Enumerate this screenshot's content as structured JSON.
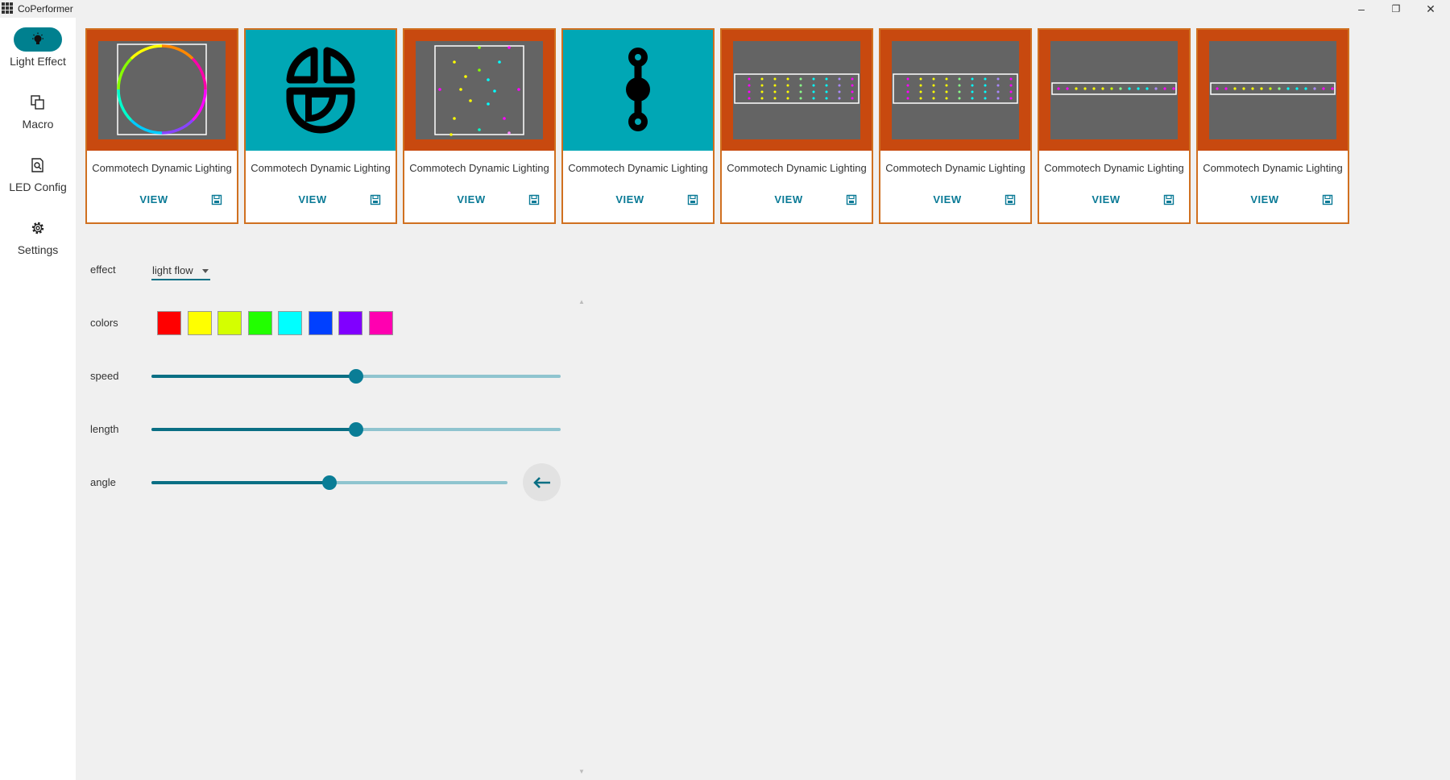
{
  "window": {
    "title": "CoPerformer",
    "controls": {
      "minimize": "–",
      "maximize": "❐",
      "close": "✕"
    }
  },
  "sidebar": {
    "items": [
      {
        "label": "Light Effect",
        "icon": "lightbulb-icon",
        "active": true
      },
      {
        "label": "Macro",
        "icon": "copy-icon",
        "active": false
      },
      {
        "label": "LED Config",
        "icon": "document-search-icon",
        "active": false
      },
      {
        "label": "Settings",
        "icon": "gear-icon",
        "active": false
      }
    ]
  },
  "cards": [
    {
      "title": "Commotech Dynamic Lighting",
      "view_label": "VIEW",
      "preview": "ring"
    },
    {
      "title": "Commotech Dynamic Lighting",
      "view_label": "VIEW",
      "preview": "logo"
    },
    {
      "title": "Commotech Dynamic Lighting",
      "view_label": "VIEW",
      "preview": "scatter"
    },
    {
      "title": "Commotech Dynamic Lighting",
      "view_label": "VIEW",
      "preview": "chain"
    },
    {
      "title": "Commotech Dynamic Lighting",
      "view_label": "VIEW",
      "preview": "grid"
    },
    {
      "title": "Commotech Dynamic Lighting",
      "view_label": "VIEW",
      "preview": "grid"
    },
    {
      "title": "Commotech Dynamic Lighting",
      "view_label": "VIEW",
      "preview": "strip"
    },
    {
      "title": "Commotech Dynamic Lighting",
      "view_label": "VIEW",
      "preview": "strip"
    }
  ],
  "controls": {
    "effect": {
      "label": "effect",
      "value": "light flow"
    },
    "colors": {
      "label": "colors",
      "swatches": [
        "#ff0000",
        "#ffff00",
        "#d4ff00",
        "#22ff00",
        "#00ffff",
        "#0040ff",
        "#8000ff",
        "#ff00b0"
      ]
    },
    "speed": {
      "label": "speed",
      "value": 0.5
    },
    "length": {
      "label": "length",
      "value": 0.5
    },
    "angle": {
      "label": "angle",
      "value": 0.5
    }
  },
  "colors": {
    "accent": "#00808f",
    "card_border": "#d07020",
    "thumb_orange": "#c8490f",
    "thumb_teal": "#00a7b5"
  }
}
